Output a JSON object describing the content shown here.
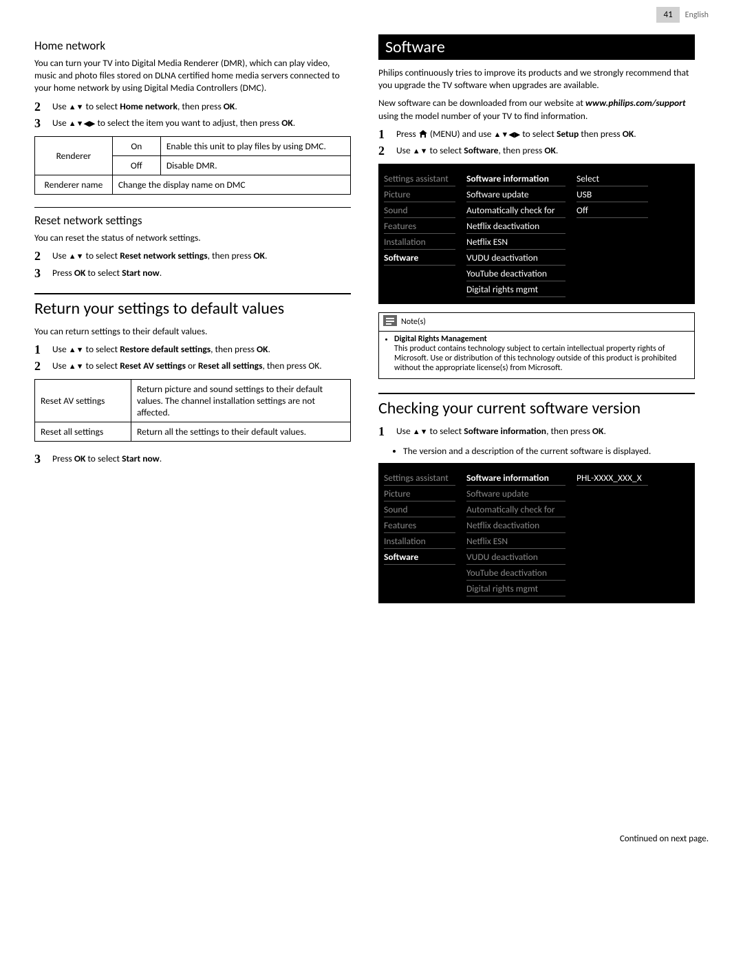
{
  "page": {
    "number": "41",
    "lang": "English",
    "footer": "Continued on next page."
  },
  "icons": {
    "up": "▲",
    "down": "▼",
    "left": "◀",
    "right": "▶"
  },
  "left": {
    "homeNetwork": {
      "title": "Home network",
      "intro": "You can turn your TV into Digital Media Renderer (DMR), which can play video, music and photo files stored on DLNA certified home media servers connected to your home network by using Digital Media Controllers (DMC).",
      "steps": [
        {
          "n": "2",
          "pre": "Use ",
          "mid": " to select ",
          "boldA": "Home network",
          "post": ", then press ",
          "boldB": "OK",
          "tail": "."
        },
        {
          "n": "3",
          "pre": "Use ",
          "mid": " to select the item you want to adjust, then press ",
          "boldA": "",
          "post": "",
          "boldB": "OK",
          "tail": ".",
          "arrows4": true
        }
      ],
      "table": {
        "rows": [
          [
            "Renderer",
            "On",
            "Enable this unit to play files by using DMC."
          ],
          [
            "",
            "Off",
            "Disable DMR."
          ],
          [
            "Renderer name",
            "Change the display name on DMC",
            ""
          ]
        ]
      }
    },
    "resetNet": {
      "title": "Reset network settings",
      "intro": "You can reset the status of network settings.",
      "steps": [
        {
          "n": "2",
          "pre": "Use ",
          "mid": " to select ",
          "boldA": "Reset network settings",
          "post": ", then press ",
          "boldB": "OK",
          "tail": "."
        },
        {
          "n": "3",
          "plain_pre": "Press ",
          "plain_bold": "OK",
          "plain_mid": " to select ",
          "plain_bold2": "Start now",
          "plain_tail": "."
        }
      ]
    },
    "returnDefault": {
      "title": "Return your settings to default values",
      "intro": "You can return settings to their default values.",
      "steps": [
        {
          "n": "1",
          "pre": "Use ",
          "mid": " to select ",
          "boldA": "Restore default settings",
          "post": ", then press ",
          "boldB": "OK",
          "tail": "."
        },
        {
          "n": "2",
          "pre": "Use ",
          "mid": " to select ",
          "boldA": "Reset AV settings",
          "post": " or ",
          "boldB": "Reset all settings",
          "tail": ", then press OK."
        }
      ],
      "table": {
        "rows": [
          [
            "Reset AV settings",
            "Return picture and sound settings to their default values. The channel installation settings are not affected."
          ],
          [
            "Reset all settings",
            "Return all the settings to their default values."
          ]
        ]
      },
      "after": {
        "n": "3",
        "plain_pre": "Press ",
        "plain_bold": "OK",
        "plain_mid": " to select ",
        "plain_bold2": "Start now",
        "plain_tail": "."
      }
    }
  },
  "right": {
    "software": {
      "title": "Software",
      "intro": "Philips continuously tries to improve its products and we strongly recommend that you upgrade the TV software when upgrades are available.",
      "web_pre": "New software can be downloaded from our website at ",
      "web_url": "www.philips.com/support",
      "web_post": " using the model number of your TV to find information.",
      "steps": [
        {
          "n": "1",
          "pressHome": true,
          "mid": " (MENU) and use ",
          "arrows4": true,
          "post": " to select ",
          "boldA": "Setup",
          "post2": " then press ",
          "boldB": "OK",
          "tail": "."
        },
        {
          "n": "2",
          "pre": "Use ",
          "mid": " to select ",
          "boldA": "Software",
          "post": ", then press ",
          "boldB": "OK",
          "tail": "."
        }
      ],
      "menu": {
        "leftCol": [
          "Settings assistant",
          "Picture",
          "Sound",
          "Features",
          "Installation",
          "Software"
        ],
        "midCol": [
          "Software information",
          "Software update",
          "Automatically check for",
          "Netflix deactivation",
          "Netflix ESN",
          "VUDU deactivation",
          "YouTube deactivation",
          "Digital rights mgmt"
        ],
        "rightCol": [
          "Select",
          "USB",
          "Off",
          "",
          "",
          "",
          "",
          ""
        ],
        "selectedLeft": 5,
        "selectedMid": 0
      },
      "notes": {
        "label": "Note(s)",
        "title": "Digital Rights Management",
        "body": "This product contains technology subject to certain intellectual property rights of Microsoft. Use or distribution of this technology outside of this product is prohibited without the appropriate license(s) from Microsoft."
      }
    },
    "checkVersion": {
      "title": "Checking your current software version",
      "steps": [
        {
          "n": "1",
          "pre": "Use ",
          "mid": " to select ",
          "boldA": "Software information",
          "post": ", then press ",
          "boldB": "OK",
          "tail": "."
        }
      ],
      "bullet": "The version and a description of the current software is displayed.",
      "menu": {
        "leftCol": [
          "Settings assistant",
          "Picture",
          "Sound",
          "Features",
          "Installation",
          "Software"
        ],
        "midCol": [
          "Software information",
          "Software update",
          "Automatically check for",
          "Netflix deactivation",
          "Netflix ESN",
          "VUDU deactivation",
          "YouTube deactivation",
          "Digital rights mgmt"
        ],
        "rightCol": [
          "PHL-XXXX_XXX_X",
          "",
          "",
          "",
          "",
          "",
          "",
          ""
        ],
        "selectedLeft": 5,
        "selectedMid": 0,
        "dimMidExceptFirst": true
      }
    }
  }
}
